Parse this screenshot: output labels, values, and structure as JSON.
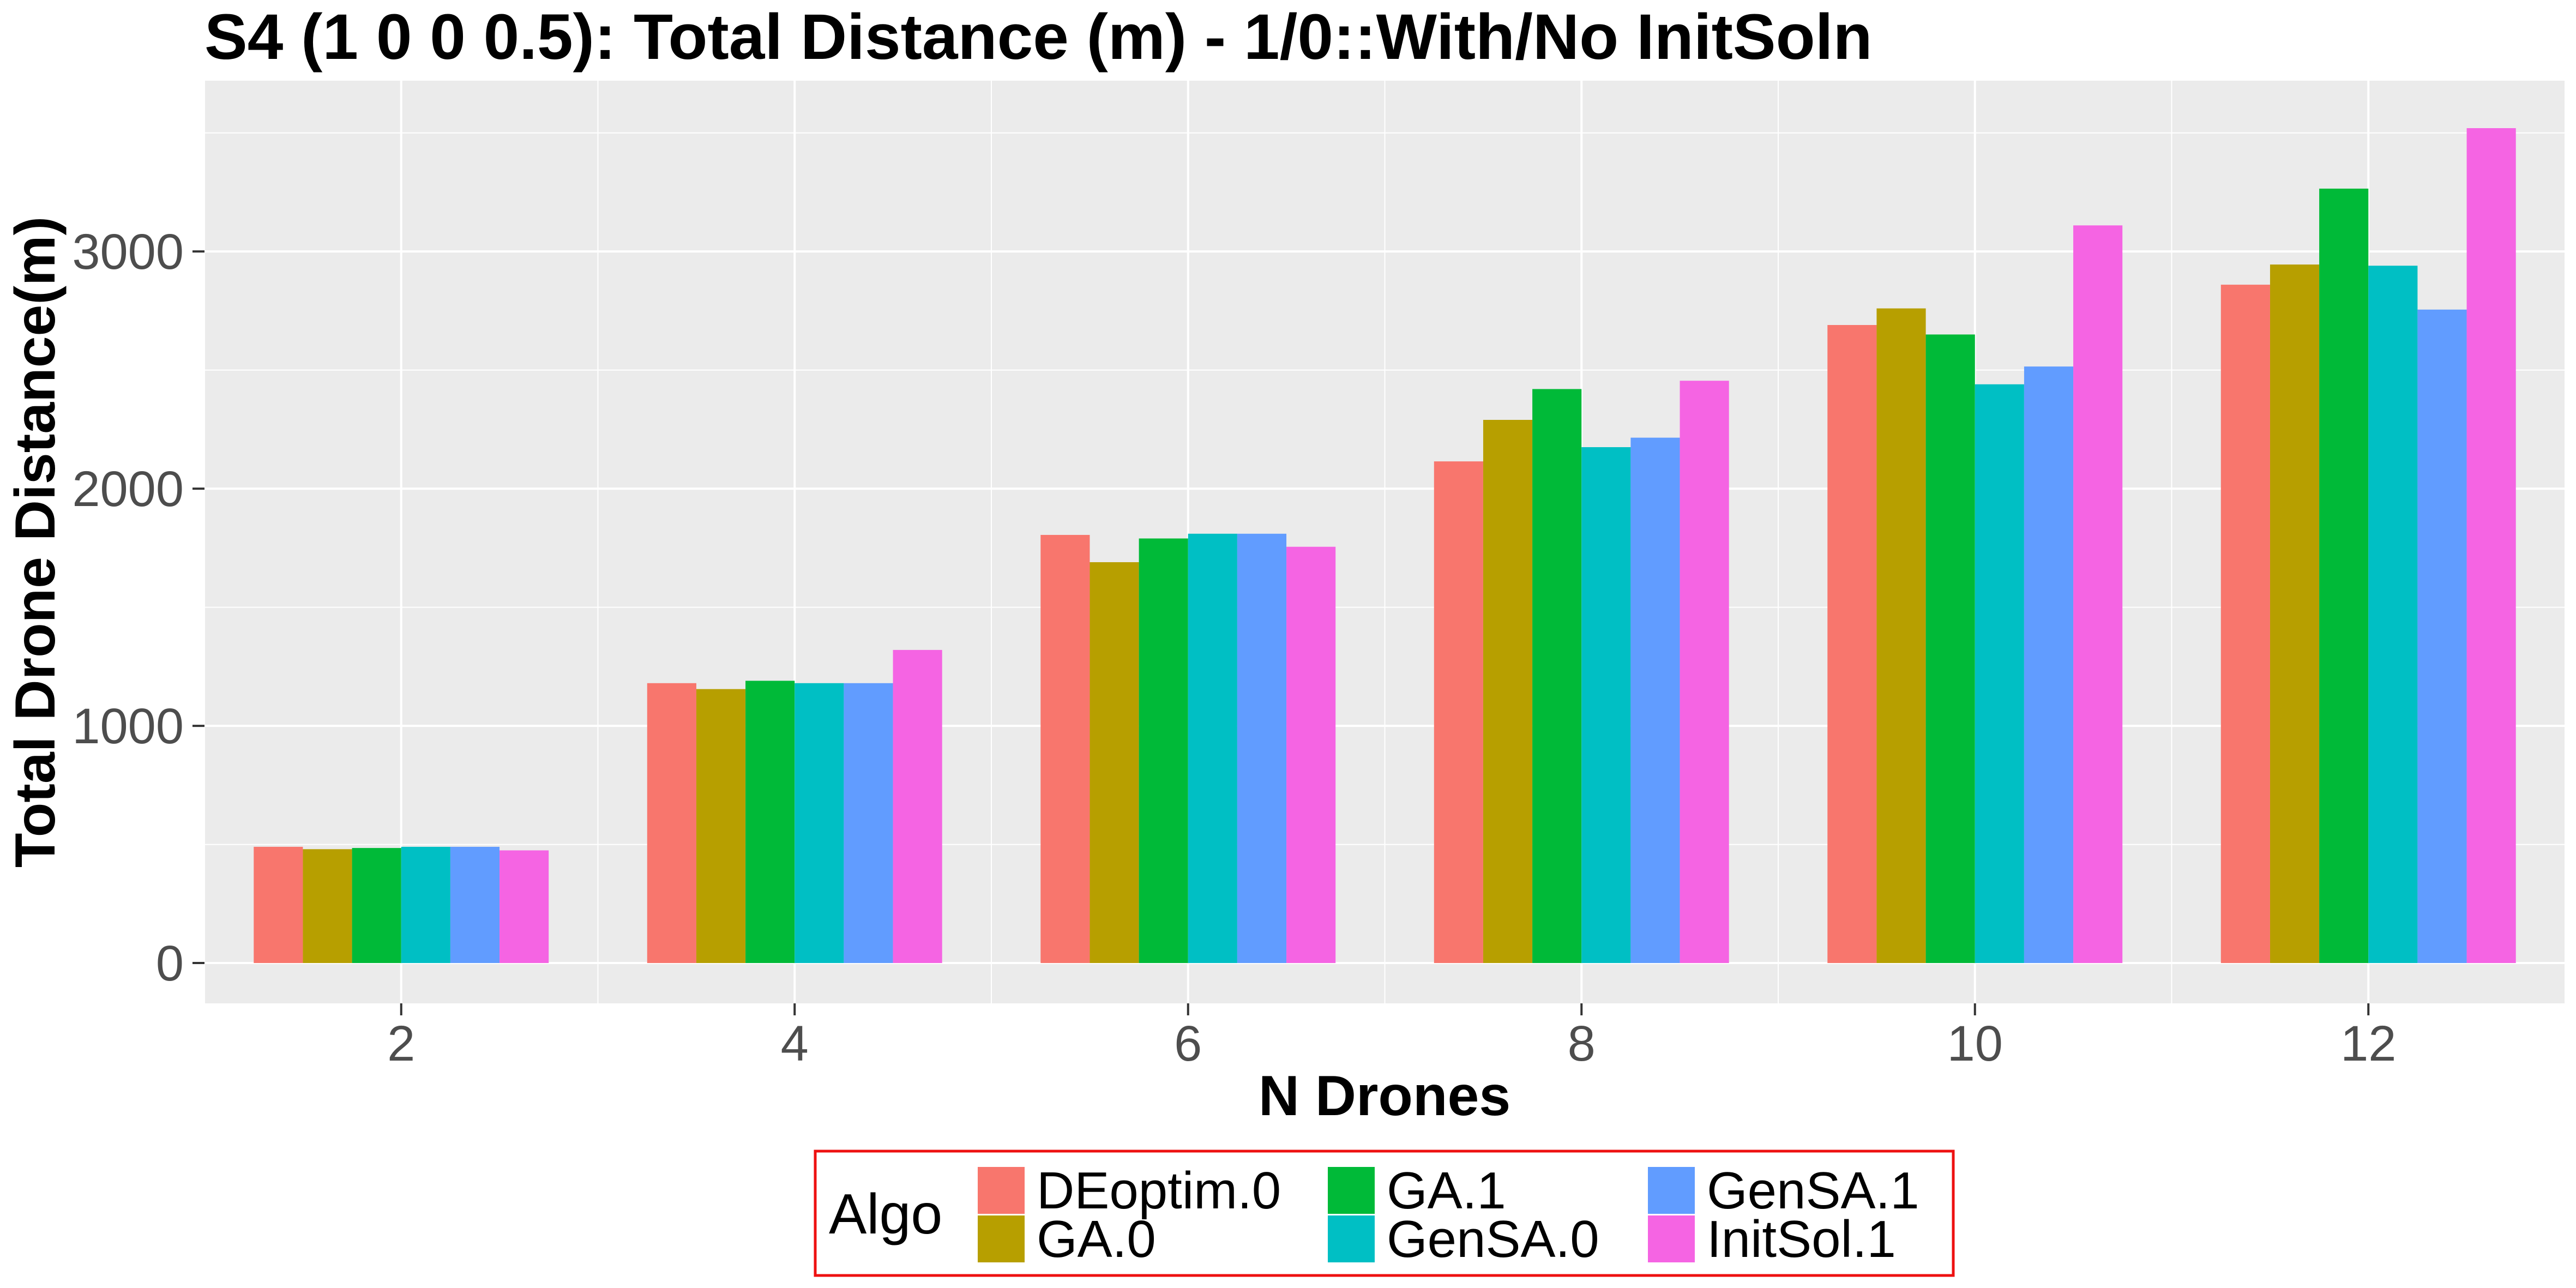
{
  "chart_data": {
    "type": "bar",
    "title": "S4 (1 0 0 0.5): Total Distance (m) - 1/0::With/No InitSoln",
    "xlabel": "N Drones",
    "ylabel": "Total Drone Distance(m)",
    "categories": [
      "2",
      "4",
      "6",
      "8",
      "10",
      "12"
    ],
    "x_range": [
      1,
      13
    ],
    "x_ticks": [
      2,
      4,
      6,
      8,
      10,
      12
    ],
    "ylim": [
      -170,
      3720
    ],
    "y_ticks": [
      0,
      1000,
      2000,
      3000
    ],
    "y_tick_labels": [
      "0",
      "1000",
      "2000",
      "3000"
    ],
    "grid": true,
    "legend": {
      "title": "Algo",
      "placement": "bottom"
    },
    "series": [
      {
        "name": "DEoptim.0",
        "color": "#F8766D",
        "values": [
          490,
          1180,
          1805,
          2115,
          2690,
          2860
        ]
      },
      {
        "name": "GA.0",
        "color": "#B79F00",
        "values": [
          480,
          1155,
          1690,
          2290,
          2760,
          2945
        ]
      },
      {
        "name": "GA.1",
        "color": "#00BA38",
        "values": [
          485,
          1190,
          1790,
          2420,
          2650,
          3265
        ]
      },
      {
        "name": "GenSA.0",
        "color": "#00BFC4",
        "values": [
          490,
          1180,
          1810,
          2175,
          2440,
          2940
        ]
      },
      {
        "name": "GenSA.1",
        "color": "#619CFF",
        "values": [
          490,
          1180,
          1810,
          2215,
          2515,
          2755
        ]
      },
      {
        "name": "InitSol.1",
        "color": "#F564E3",
        "values": [
          475,
          1320,
          1755,
          2455,
          3110,
          3520
        ]
      }
    ]
  }
}
